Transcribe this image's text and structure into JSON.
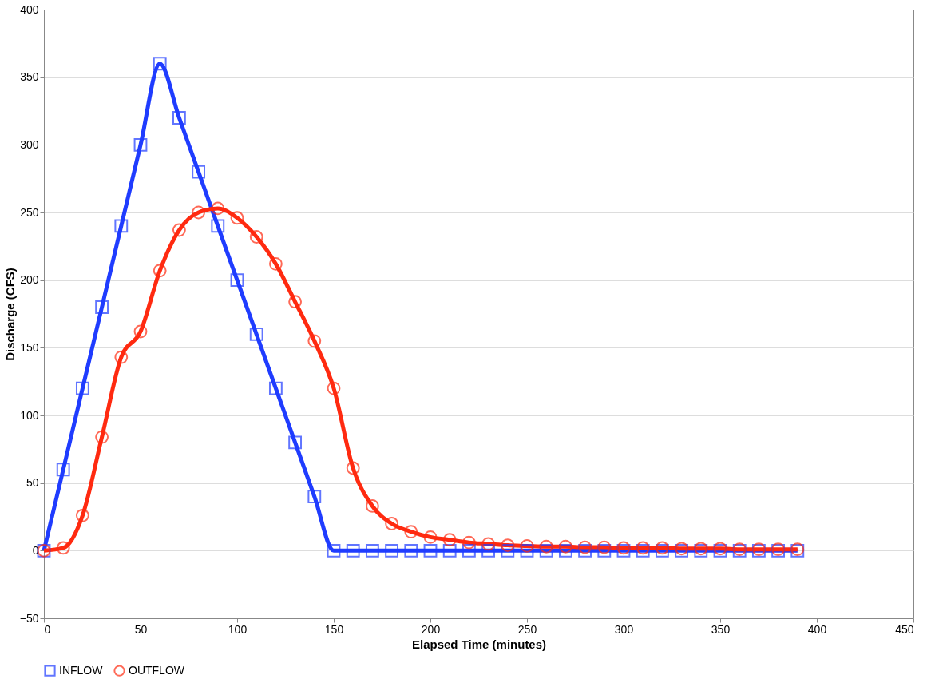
{
  "chart_data": {
    "type": "line",
    "xlabel": "Elapsed Time (minutes)",
    "ylabel": "Discharge (CFS)",
    "x": [
      0,
      10,
      20,
      30,
      40,
      50,
      60,
      70,
      80,
      90,
      100,
      110,
      120,
      130,
      140,
      150,
      160,
      170,
      180,
      190,
      200,
      210,
      220,
      230,
      240,
      250,
      260,
      270,
      280,
      290,
      300,
      310,
      320,
      330,
      340,
      350,
      360,
      370,
      380,
      390
    ],
    "series": [
      {
        "name": "INFLOW",
        "color": "#1f3cff",
        "marker": "square",
        "values": [
          0,
          60,
          120,
          180,
          240,
          300,
          360,
          320,
          280,
          240,
          200,
          160,
          120,
          80,
          40,
          0,
          0,
          0,
          0,
          0,
          0,
          0,
          0,
          0,
          0,
          0,
          0,
          0,
          0,
          0,
          0,
          0,
          0,
          0,
          0,
          0,
          0,
          0,
          0,
          0
        ]
      },
      {
        "name": "OUTFLOW",
        "color": "#ff2a10",
        "marker": "circle",
        "values": [
          0,
          2,
          26,
          84,
          143,
          162,
          207,
          237,
          250,
          253,
          246,
          232,
          212,
          184,
          155,
          120,
          61,
          33,
          20,
          14,
          10,
          8,
          6,
          5,
          4,
          3.5,
          3,
          3,
          2.5,
          2.5,
          2,
          2,
          2,
          1.5,
          1.5,
          1.5,
          1,
          1,
          1,
          1
        ]
      }
    ],
    "xlim": [
      0,
      450
    ],
    "xticks": [
      0,
      50,
      100,
      150,
      200,
      250,
      300,
      350,
      400,
      450
    ],
    "ylim": [
      -50,
      400
    ],
    "yticks": [
      -50,
      0,
      50,
      100,
      150,
      200,
      250,
      300,
      350,
      400
    ],
    "grid": "y",
    "legend": "bottom",
    "line_style": "solid"
  }
}
